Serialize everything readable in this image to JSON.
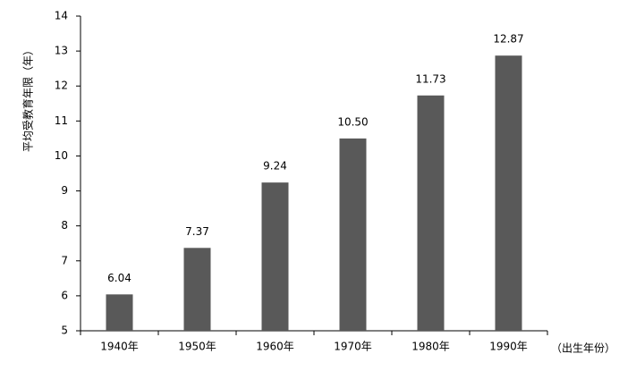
{
  "chart_data": {
    "type": "bar",
    "y_label": "平均受教育年限（年）",
    "x_label": "（出生年份）",
    "categories": [
      "1940年",
      "1950年",
      "1960年",
      "1970年",
      "1980年",
      "1990年"
    ],
    "values": [
      6.04,
      7.37,
      9.24,
      10.5,
      11.73,
      12.87
    ],
    "value_labels": [
      "6.04",
      "7.37",
      "9.24",
      "10.50",
      "11.73",
      "12.87"
    ],
    "color": "#595959",
    "ylim": [
      5,
      14
    ],
    "yticks": [
      5,
      6,
      7,
      8,
      9,
      10,
      11,
      12,
      13,
      14
    ]
  }
}
